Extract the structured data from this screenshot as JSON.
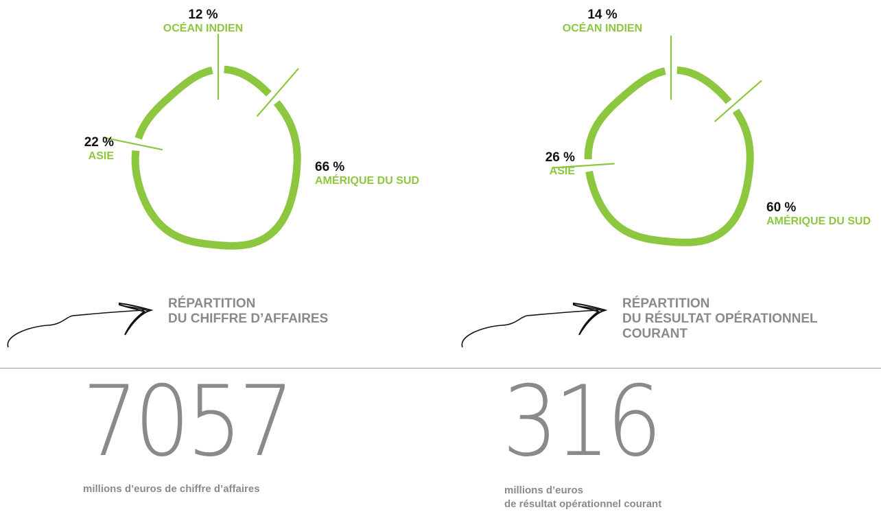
{
  "colors": {
    "accent": "#8dc63f",
    "text_dark": "#111111",
    "text_gray": "#8a8a8a"
  },
  "chart_data": [
    {
      "type": "pie",
      "style": "donut",
      "title_lines": [
        "RÉPARTITION",
        "DU CHIFFRE D’AFFAIRES"
      ],
      "slices": [
        {
          "label": "OCÉAN INDIEN",
          "value": 12,
          "value_label": "12 %"
        },
        {
          "label": "AMÉRIQUE DU SUD",
          "value": 66,
          "value_label": "66 %"
        },
        {
          "label": "ASIE",
          "value": 22,
          "value_label": "22 %"
        }
      ]
    },
    {
      "type": "pie",
      "style": "donut",
      "title_lines": [
        "RÉPARTITION",
        "DU RÉSULTAT OPÉRATIONNEL",
        "COURANT"
      ],
      "slices": [
        {
          "label": "OCÉAN INDIEN",
          "value": 14,
          "value_label": "14 %"
        },
        {
          "label": "AMÉRIQUE DU SUD",
          "value": 60,
          "value_label": "60 %"
        },
        {
          "label": "ASIE",
          "value": 26,
          "value_label": "26 %"
        }
      ]
    }
  ],
  "kpis": [
    {
      "value": "7057",
      "caption_lines": [
        "millions d’euros de chiffre d’affaires"
      ]
    },
    {
      "value": "316",
      "caption_lines": [
        "millions d’euros",
        "de résultat opérationnel courant"
      ]
    }
  ]
}
